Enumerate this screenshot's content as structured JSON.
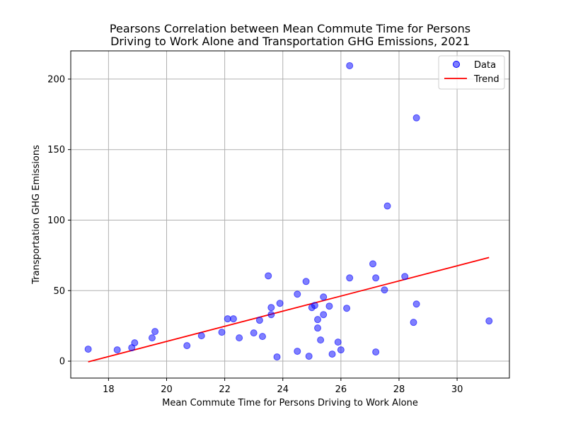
{
  "chart_data": {
    "type": "scatter",
    "title_line1": "Pearsons Correlation between Mean Commute Time for Persons",
    "title_line2": "Driving to Work Alone and Transportation GHG Emissions, 2021",
    "xlabel": "Mean Commute Time for Persons Driving to Work Alone",
    "ylabel": "Transportation GHG Emissions",
    "xlim": [
      16.7,
      31.8
    ],
    "ylim": [
      -12,
      220
    ],
    "xticks": [
      18,
      20,
      22,
      24,
      26,
      28,
      30
    ],
    "yticks": [
      0,
      50,
      100,
      150,
      200
    ],
    "grid": true,
    "legend_position": "top-right",
    "legend": {
      "data_label": "Data",
      "trend_label": "Trend"
    },
    "colors": {
      "points": "#0000ff",
      "trend": "#ff0000",
      "grid": "#b0b0b0"
    },
    "series": [
      {
        "name": "Data",
        "points": [
          [
            17.3,
            8.5
          ],
          [
            18.3,
            8.0
          ],
          [
            18.8,
            9.5
          ],
          [
            18.9,
            13.0
          ],
          [
            19.5,
            16.5
          ],
          [
            19.6,
            21.0
          ],
          [
            20.7,
            11.0
          ],
          [
            21.2,
            18.0
          ],
          [
            21.9,
            20.5
          ],
          [
            22.1,
            30.0
          ],
          [
            22.3,
            30.0
          ],
          [
            22.5,
            16.5
          ],
          [
            23.0,
            20.0
          ],
          [
            23.2,
            29.0
          ],
          [
            23.3,
            17.5
          ],
          [
            23.5,
            60.5
          ],
          [
            23.6,
            38.0
          ],
          [
            23.6,
            33.0
          ],
          [
            23.8,
            3.0
          ],
          [
            23.9,
            41.0
          ],
          [
            24.5,
            47.5
          ],
          [
            24.5,
            7.0
          ],
          [
            24.8,
            56.5
          ],
          [
            24.9,
            3.5
          ],
          [
            25.0,
            38.0
          ],
          [
            25.1,
            39.5
          ],
          [
            25.2,
            29.5
          ],
          [
            25.2,
            23.5
          ],
          [
            25.3,
            15.0
          ],
          [
            25.4,
            45.5
          ],
          [
            25.4,
            33.0
          ],
          [
            25.6,
            39.0
          ],
          [
            25.7,
            5.0
          ],
          [
            25.9,
            13.5
          ],
          [
            26.0,
            8.0
          ],
          [
            26.2,
            37.5
          ],
          [
            26.3,
            59.0
          ],
          [
            26.3,
            209.5
          ],
          [
            27.1,
            69.0
          ],
          [
            27.2,
            59.0
          ],
          [
            27.2,
            6.5
          ],
          [
            27.5,
            50.5
          ],
          [
            27.6,
            110.0
          ],
          [
            28.2,
            60.0
          ],
          [
            28.5,
            27.5
          ],
          [
            28.6,
            40.5
          ],
          [
            28.6,
            172.5
          ],
          [
            31.1,
            28.5
          ]
        ]
      },
      {
        "name": "Trend",
        "points": [
          [
            17.3,
            -0.5
          ],
          [
            31.1,
            73.5
          ]
        ]
      }
    ]
  }
}
